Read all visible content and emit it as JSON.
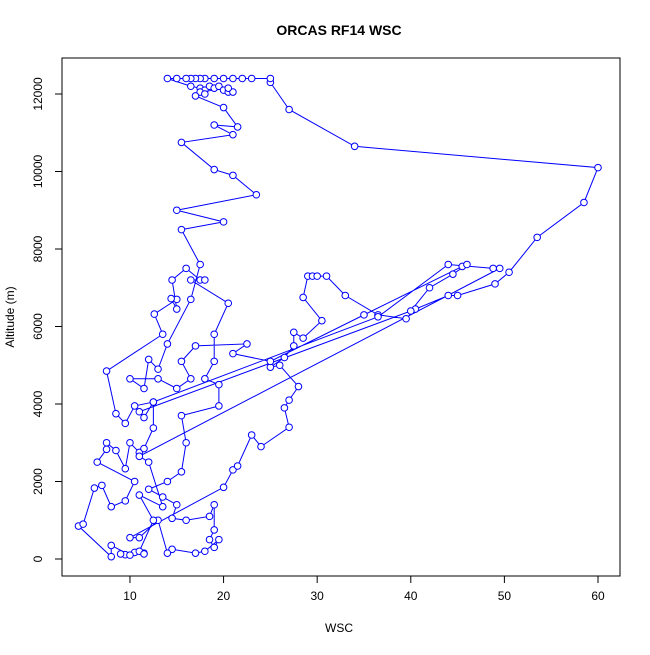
{
  "chart_data": {
    "type": "line",
    "title": "ORCAS RF14 WSC",
    "x_label": "WSC",
    "y_label": "Altitude (m)",
    "color": "#0000ff",
    "x": [
      11.5,
      10.5,
      9.5,
      9,
      10,
      8,
      8,
      4.5,
      5,
      6.2,
      7,
      8,
      9.5,
      10.5,
      6.5,
      7.5,
      7.5,
      8.5,
      9.5,
      10,
      11,
      11.5,
      12.5,
      12.5,
      10.5,
      9.5,
      8.5,
      7.5,
      13.5,
      12.6,
      15,
      14.4,
      15,
      14.5,
      16,
      17.5,
      18,
      16.5,
      20.5,
      19,
      19,
      18,
      19.5,
      19.5,
      15.5,
      16,
      15.5,
      14,
      12,
      13.5,
      15,
      14.5,
      16,
      18.5,
      19,
      19,
      18.5,
      19,
      19.5,
      18,
      17,
      14.5,
      14,
      13,
      11,
      10,
      20,
      21,
      21.5,
      23,
      24,
      27,
      26.5,
      27,
      28,
      26,
      25,
      26.5,
      27.5,
      27.5,
      28.5,
      30.5,
      28.5,
      29,
      29.5,
      30,
      31,
      33,
      36.5,
      39.5,
      40.5,
      44,
      45,
      49,
      50.5,
      53.5,
      58.5,
      60,
      34,
      27,
      25,
      25,
      23,
      22,
      21,
      20,
      19,
      18,
      17.5,
      17,
      16.5,
      16,
      15,
      14,
      16.5,
      17.5,
      18,
      18.5,
      19,
      19.5,
      20,
      20.5,
      21,
      20.5,
      17.5,
      18,
      17,
      20,
      21.5,
      19,
      21,
      15.5,
      19,
      21,
      23.5,
      15,
      20,
      15.5,
      17.5,
      16.5,
      14,
      13,
      12,
      11.5,
      10,
      13,
      15,
      16.5,
      15.5,
      17,
      22.5,
      21,
      25,
      35,
      45.5,
      46,
      44.5,
      42,
      40,
      11,
      11.5,
      12.5,
      36.5,
      44,
      48.8,
      49.5,
      11,
      12,
      13.5,
      11,
      12.5,
      11,
      11.5
    ],
    "values": [
      150,
      170,
      110,
      130,
      100,
      350,
      60,
      850,
      900,
      1830,
      1900,
      1350,
      1500,
      2000,
      2500,
      2830,
      3000,
      2800,
      2330,
      3000,
      2750,
      2850,
      3380,
      4050,
      3950,
      3500,
      3750,
      4850,
      5800,
      6320,
      6700,
      6720,
      6450,
      7200,
      7500,
      7200,
      7200,
      7200,
      6600,
      5800,
      5100,
      4650,
      4500,
      3950,
      3700,
      3000,
      2250,
      2000,
      1800,
      1600,
      1400,
      1050,
      1000,
      1100,
      1400,
      750,
      500,
      300,
      500,
      200,
      150,
      250,
      150,
      1000,
      550,
      550,
      1850,
      2300,
      2400,
      3200,
      2900,
      3400,
      3900,
      4100,
      4450,
      5000,
      4950,
      5200,
      5500,
      5850,
      5700,
      6150,
      6750,
      7300,
      7300,
      7300,
      7300,
      6800,
      6300,
      6200,
      6450,
      6800,
      6800,
      7100,
      7400,
      8300,
      9200,
      10100,
      10650,
      11600,
      12300,
      12400,
      12400,
      12400,
      12400,
      12400,
      12400,
      12400,
      12400,
      12400,
      12400,
      12400,
      12400,
      12400,
      12200,
      12150,
      12100,
      12200,
      12150,
      12200,
      12100,
      12050,
      12050,
      12150,
      12050,
      12000,
      11950,
      11650,
      11150,
      11200,
      10950,
      10750,
      10050,
      9900,
      9400,
      9000,
      8700,
      8500,
      7600,
      6700,
      5550,
      4900,
      5150,
      4400,
      4650,
      4650,
      4400,
      4650,
      5100,
      5500,
      5550,
      5300,
      5100,
      6300,
      7550,
      7600,
      7350,
      7000,
      6400,
      3800,
      3650,
      4050,
      6250,
      7600,
      7500,
      7500,
      2650,
      2500,
      1350,
      1650,
      1000,
      200,
      130
    ],
    "xlim": [
      2.74,
      62.35
    ],
    "ylim": [
      -439,
      12929
    ],
    "xticks": [
      10,
      20,
      30,
      40,
      50,
      60
    ],
    "yticks": [
      0,
      2000,
      4000,
      6000,
      8000,
      10000,
      12000
    ]
  }
}
